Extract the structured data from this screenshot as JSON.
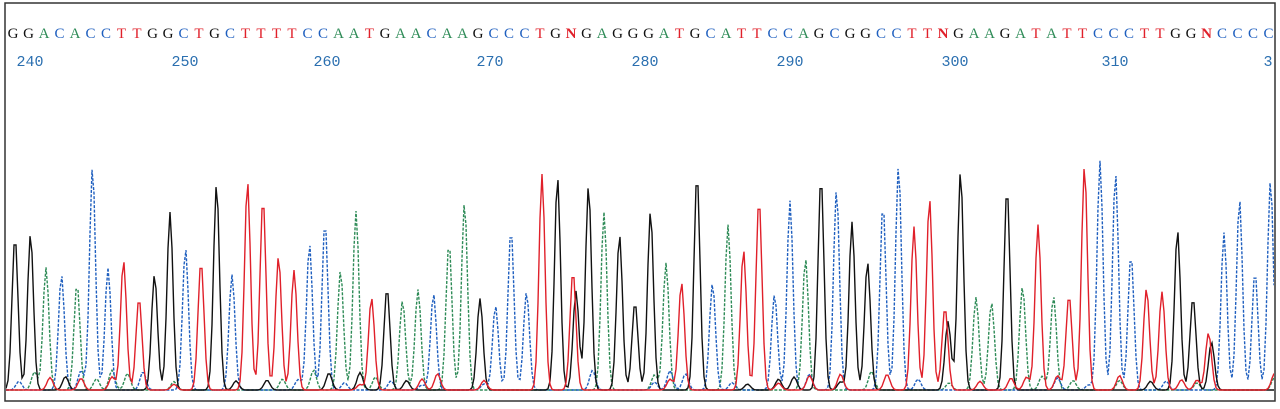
{
  "sequence": "GGACACCTTGGCTGCTTTTCCAATGAACAAGCCCTGNGAGGGATGCATTCCAGCGGCCTTNGAAGATATTCCCTTGGNCCCC",
  "positions": [
    "240",
    "250",
    "260",
    "270",
    "280",
    "290",
    "300",
    "310",
    "3"
  ]
}
